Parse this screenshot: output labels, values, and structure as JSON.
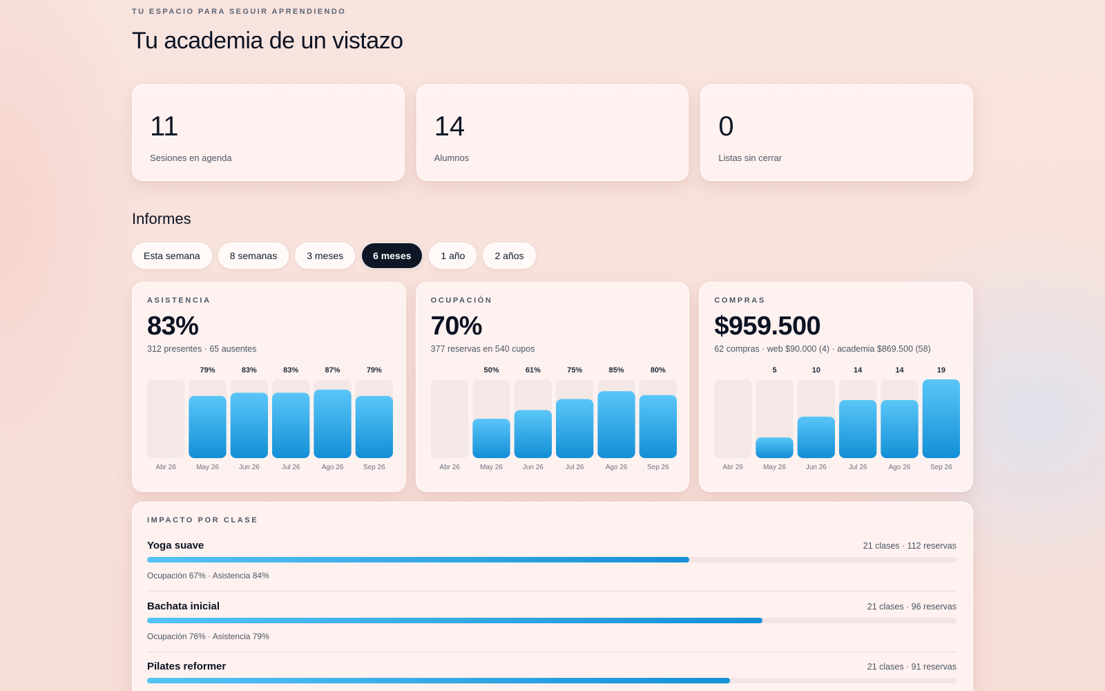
{
  "header": {
    "eyebrow": "TU ESPACIO PARA SEGUIR APRENDIENDO",
    "title": "Tu academia de un vistazo"
  },
  "stats": [
    {
      "value": "11",
      "label": "Sesiones en agenda"
    },
    {
      "value": "14",
      "label": "Alumnos"
    },
    {
      "value": "0",
      "label": "Listas sin cerrar"
    }
  ],
  "reports": {
    "title": "Informes",
    "tabs": [
      {
        "label": "Esta semana",
        "active": false
      },
      {
        "label": "8 semanas",
        "active": false
      },
      {
        "label": "3 meses",
        "active": false
      },
      {
        "label": "6 meses",
        "active": true
      },
      {
        "label": "1 año",
        "active": false
      },
      {
        "label": "2 años",
        "active": false
      }
    ]
  },
  "cards": [
    {
      "eyebrow": "ASISTENCIA",
      "value": "83%",
      "sub": "312 presentes · 65 ausentes"
    },
    {
      "eyebrow": "OCUPACIÓN",
      "value": "70%",
      "sub": "377 reservas en 540 cupos"
    },
    {
      "eyebrow": "COMPRAS",
      "value": "$959.500",
      "sub": "62 compras · web $90.000 (4) · academia $869.500 (58)"
    }
  ],
  "chart_data": [
    {
      "type": "bar",
      "title": "ASISTENCIA",
      "categories": [
        "Abr 26",
        "May 26",
        "Jun 26",
        "Jul 26",
        "Ago 26",
        "Sep 26"
      ],
      "values": [
        null,
        79,
        83,
        83,
        87,
        79
      ],
      "data_labels": [
        "",
        "79%",
        "83%",
        "83%",
        "87%",
        "79%"
      ],
      "ylim": [
        0,
        100
      ],
      "grid": false,
      "colors": {
        "bar_top": "#5ac6f8",
        "bar_bottom": "#138fd6",
        "track": "#f3e8e6"
      }
    },
    {
      "type": "bar",
      "title": "OCUPACIÓN",
      "categories": [
        "Abr 26",
        "May 26",
        "Jun 26",
        "Jul 26",
        "Ago 26",
        "Sep 26"
      ],
      "values": [
        null,
        50,
        61,
        75,
        85,
        80
      ],
      "data_labels": [
        "",
        "50%",
        "61%",
        "75%",
        "85%",
        "80%"
      ],
      "ylim": [
        0,
        100
      ],
      "grid": false,
      "colors": {
        "bar_top": "#5ac6f8",
        "bar_bottom": "#138fd6",
        "track": "#f3e8e6"
      }
    },
    {
      "type": "bar",
      "title": "COMPRAS",
      "categories": [
        "Abr 26",
        "May 26",
        "Jun 26",
        "Jul 26",
        "Ago 26",
        "Sep 26"
      ],
      "values": [
        null,
        5,
        10,
        14,
        14,
        19
      ],
      "data_labels": [
        "",
        "5",
        "10",
        "14",
        "14",
        "19"
      ],
      "ylim": [
        0,
        19
      ],
      "grid": false,
      "colors": {
        "bar_top": "#5ac6f8",
        "bar_bottom": "#138fd6",
        "track": "#f3e8e6"
      }
    }
  ],
  "impact": {
    "eyebrow": "IMPACTO POR CLASE",
    "rows": [
      {
        "name": "Yoga suave",
        "meta": "21 clases · 112 reservas",
        "detail": "Ocupación 67% · Asistencia 84%",
        "share": 0.67
      },
      {
        "name": "Bachata inicial",
        "meta": "21 clases · 96 reservas",
        "detail": "Ocupación 76% · Asistencia 79%",
        "share": 0.76
      },
      {
        "name": "Pilates reformer",
        "meta": "21 clases · 91 reservas",
        "detail": "",
        "share": 0.72
      }
    ]
  }
}
